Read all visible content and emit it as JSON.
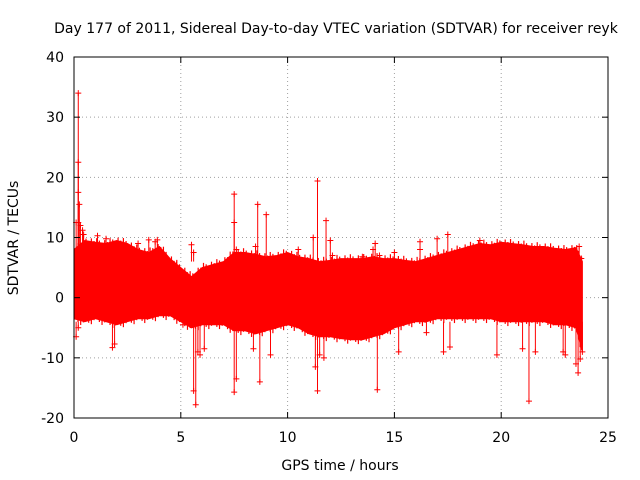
{
  "chart_data": {
    "type": "scatter",
    "title": "Day 177 of 2011, Sidereal Day-to-day VTEC variation (SDTVAR) for receiver reyk",
    "xlabel": "GPS time / hours",
    "ylabel": "SDTVAR / TECUs",
    "xlim": [
      0,
      25
    ],
    "ylim": [
      -20,
      40
    ],
    "xticks": [
      0,
      5,
      10,
      15,
      20,
      25
    ],
    "yticks": [
      -20,
      -10,
      0,
      10,
      20,
      30,
      40
    ],
    "grid": true,
    "legend": "none",
    "series": [
      {
        "name": "SDTVAR",
        "color": "#ff0000",
        "marker": "plus",
        "envelope": {
          "x": [
            0.0,
            0.5,
            1.0,
            1.5,
            2.0,
            2.5,
            3.0,
            3.5,
            4.0,
            4.5,
            5.0,
            5.5,
            6.0,
            6.5,
            7.0,
            7.5,
            8.0,
            8.5,
            9.0,
            9.5,
            10.0,
            10.5,
            11.0,
            11.5,
            12.0,
            12.5,
            13.0,
            13.5,
            14.0,
            14.5,
            15.0,
            15.5,
            16.0,
            16.5,
            17.0,
            17.5,
            18.0,
            18.5,
            19.0,
            19.5,
            20.0,
            20.5,
            21.0,
            21.5,
            22.0,
            22.5,
            23.0,
            23.5,
            23.8
          ],
          "upper": [
            8.0,
            9.5,
            9.2,
            9.0,
            9.5,
            9.0,
            8.0,
            7.5,
            8.5,
            6.5,
            5.0,
            3.5,
            5.0,
            5.5,
            6.0,
            7.5,
            7.5,
            7.2,
            6.8,
            7.0,
            7.5,
            6.8,
            6.5,
            6.0,
            6.2,
            6.5,
            6.5,
            6.5,
            6.8,
            6.5,
            6.5,
            6.2,
            6.0,
            6.5,
            7.0,
            7.5,
            8.0,
            8.5,
            9.0,
            8.8,
            9.2,
            9.0,
            8.8,
            8.5,
            8.5,
            8.2,
            8.0,
            8.3,
            6.0
          ],
          "lower": [
            -3.5,
            -4.0,
            -3.5,
            -4.0,
            -4.5,
            -4.0,
            -3.5,
            -3.5,
            -3.0,
            -3.0,
            -4.0,
            -5.0,
            -4.5,
            -4.5,
            -4.5,
            -5.5,
            -5.5,
            -6.0,
            -5.5,
            -5.0,
            -4.5,
            -5.0,
            -6.0,
            -6.5,
            -6.5,
            -6.8,
            -7.0,
            -7.0,
            -6.5,
            -6.0,
            -5.0,
            -4.5,
            -4.0,
            -4.0,
            -3.5,
            -3.5,
            -3.5,
            -3.5,
            -3.5,
            -3.5,
            -4.0,
            -4.0,
            -4.0,
            -4.0,
            -4.0,
            -4.5,
            -4.5,
            -5.0,
            -9.0
          ]
        },
        "outliers": [
          {
            "x": 0.2,
            "y": 34.0
          },
          {
            "x": 0.2,
            "y": 22.5
          },
          {
            "x": 0.2,
            "y": 17.5
          },
          {
            "x": 0.25,
            "y": 15.5
          },
          {
            "x": 0.1,
            "y": 12.5
          },
          {
            "x": 0.2,
            "y": 12.5
          },
          {
            "x": 0.3,
            "y": 12.0
          },
          {
            "x": 0.4,
            "y": 11.2
          },
          {
            "x": 0.45,
            "y": 10.5
          },
          {
            "x": 0.1,
            "y": -6.5
          },
          {
            "x": 0.2,
            "y": -5.0
          },
          {
            "x": 1.1,
            "y": 10.3
          },
          {
            "x": 1.5,
            "y": 9.8
          },
          {
            "x": 1.8,
            "y": -8.3
          },
          {
            "x": 1.9,
            "y": -7.7
          },
          {
            "x": 3.0,
            "y": 9.0
          },
          {
            "x": 3.5,
            "y": 9.6
          },
          {
            "x": 3.9,
            "y": 9.6
          },
          {
            "x": 3.8,
            "y": 9.3
          },
          {
            "x": 4.8,
            "y": 4.2
          },
          {
            "x": 5.1,
            "y": -4.5
          },
          {
            "x": 5.5,
            "y": 8.8
          },
          {
            "x": 5.6,
            "y": 7.5
          },
          {
            "x": 5.6,
            "y": -15.5
          },
          {
            "x": 5.7,
            "y": -17.8
          },
          {
            "x": 5.8,
            "y": -9.0
          },
          {
            "x": 5.9,
            "y": -9.5
          },
          {
            "x": 6.1,
            "y": -8.5
          },
          {
            "x": 7.5,
            "y": 17.2
          },
          {
            "x": 7.5,
            "y": 12.5
          },
          {
            "x": 7.6,
            "y": 8.0
          },
          {
            "x": 7.5,
            "y": -15.7
          },
          {
            "x": 7.6,
            "y": -13.5
          },
          {
            "x": 8.6,
            "y": 15.5
          },
          {
            "x": 8.5,
            "y": 8.5
          },
          {
            "x": 8.4,
            "y": -8.5
          },
          {
            "x": 8.7,
            "y": -14.0
          },
          {
            "x": 9.0,
            "y": 13.8
          },
          {
            "x": 9.2,
            "y": -9.5
          },
          {
            "x": 10.5,
            "y": 8.0
          },
          {
            "x": 11.2,
            "y": 10.0
          },
          {
            "x": 11.4,
            "y": 19.4
          },
          {
            "x": 11.3,
            "y": -11.5
          },
          {
            "x": 11.4,
            "y": -15.5
          },
          {
            "x": 11.5,
            "y": -9.5
          },
          {
            "x": 11.8,
            "y": 12.8
          },
          {
            "x": 11.7,
            "y": -10.0
          },
          {
            "x": 12.0,
            "y": 9.5
          },
          {
            "x": 12.1,
            "y": 7.0
          },
          {
            "x": 13.5,
            "y": 6.8
          },
          {
            "x": 14.0,
            "y": 8.0
          },
          {
            "x": 14.1,
            "y": 9.0
          },
          {
            "x": 14.3,
            "y": 7.0
          },
          {
            "x": 14.2,
            "y": -15.3
          },
          {
            "x": 15.0,
            "y": 7.5
          },
          {
            "x": 15.2,
            "y": -9.0
          },
          {
            "x": 16.2,
            "y": 8.0
          },
          {
            "x": 16.2,
            "y": 9.3
          },
          {
            "x": 16.5,
            "y": -5.8
          },
          {
            "x": 17.0,
            "y": 9.8
          },
          {
            "x": 17.3,
            "y": -9.0
          },
          {
            "x": 17.5,
            "y": 10.5
          },
          {
            "x": 17.6,
            "y": -8.2
          },
          {
            "x": 19.0,
            "y": 9.5
          },
          {
            "x": 19.8,
            "y": -9.5
          },
          {
            "x": 21.3,
            "y": -17.2
          },
          {
            "x": 21.6,
            "y": -9.0
          },
          {
            "x": 21.0,
            "y": -8.5
          },
          {
            "x": 22.9,
            "y": -9.0
          },
          {
            "x": 23.0,
            "y": -9.5
          },
          {
            "x": 23.5,
            "y": -11.0
          },
          {
            "x": 23.6,
            "y": -12.5
          },
          {
            "x": 23.7,
            "y": -10.2
          },
          {
            "x": 23.8,
            "y": -9.0
          },
          {
            "x": 23.65,
            "y": 8.5
          },
          {
            "x": 23.75,
            "y": 6.5
          }
        ]
      }
    ]
  }
}
